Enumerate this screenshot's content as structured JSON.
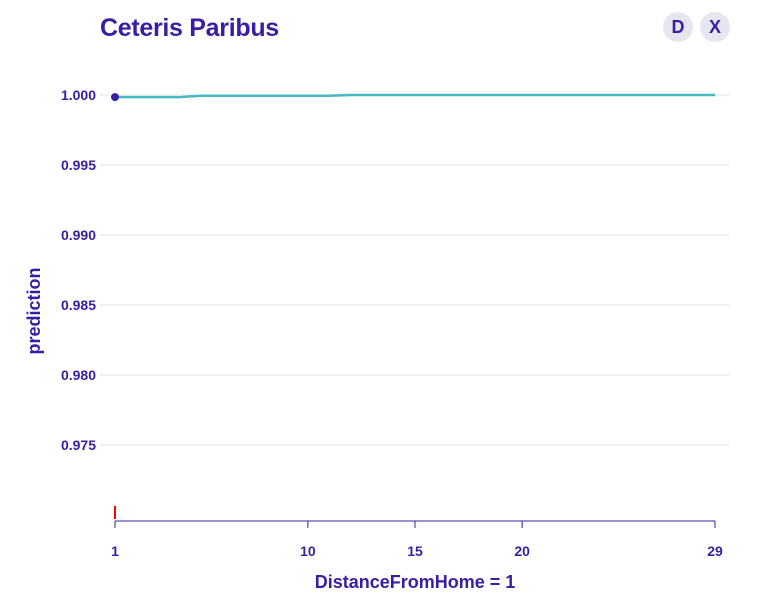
{
  "header": {
    "title": "Ceteris Paribus",
    "buttons": [
      {
        "label": "D"
      },
      {
        "label": "X"
      }
    ]
  },
  "colors": {
    "accent": "#371ea3",
    "line": "#46bac2",
    "observation_marker": "#ff0000",
    "grid": "#e6e6e6"
  },
  "chart_data": {
    "type": "line",
    "xlabel": "DistanceFromHome = 1",
    "ylabel": "prediction",
    "xlim": [
      1,
      29
    ],
    "ylim": [
      0.9705,
      1.0025
    ],
    "x_ticks": [
      1,
      10,
      15,
      20,
      29
    ],
    "y_ticks": [
      0.975,
      0.98,
      0.985,
      0.99,
      0.995,
      1.0
    ],
    "y_tick_labels": [
      "0.975",
      "0.980",
      "0.985",
      "0.990",
      "0.995",
      "1.000"
    ],
    "grid": true,
    "series": [
      {
        "x": [
          1,
          2,
          3,
          4,
          5,
          6,
          7,
          8,
          9,
          10,
          11,
          12,
          13,
          14,
          15,
          16,
          17,
          18,
          19,
          20,
          21,
          22,
          23,
          24,
          25,
          26,
          27,
          28,
          29
        ],
        "y": [
          0.99985,
          0.99985,
          0.99985,
          0.99985,
          0.99995,
          0.99995,
          0.99995,
          0.99995,
          0.99995,
          0.99995,
          0.99995,
          1.0,
          1.0,
          1.0,
          1.0,
          1.0,
          1.0,
          1.0,
          1.0,
          1.0,
          1.0,
          1.0,
          1.0,
          1.0,
          1.0,
          1.0,
          1.0,
          1.0,
          1.0
        ]
      }
    ],
    "observation": {
      "x": 1,
      "y": 0.99985
    },
    "rug": [
      1
    ]
  }
}
